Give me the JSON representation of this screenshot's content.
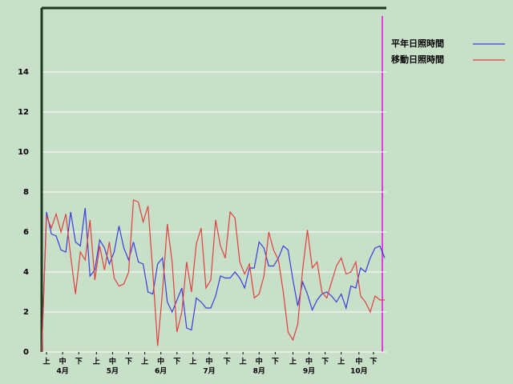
{
  "chart_data": {
    "type": "line",
    "x": [
      0,
      3,
      6,
      9,
      12,
      15,
      18,
      21,
      24,
      27,
      30,
      33,
      36,
      39,
      42,
      45,
      48,
      51,
      54,
      57,
      60,
      63,
      66,
      69,
      72,
      75,
      78,
      81,
      84,
      87,
      90,
      93,
      96,
      99,
      102,
      105,
      108,
      111,
      114,
      117,
      120,
      123,
      126,
      129,
      132,
      135,
      138,
      141,
      144,
      147,
      150,
      153,
      156,
      159,
      162,
      165,
      168,
      171,
      174,
      177,
      180,
      183,
      186,
      189,
      192,
      195,
      198,
      201,
      204,
      207,
      210,
      213
    ],
    "series": [
      {
        "name": "平年日照時間",
        "color": "#3c3cdc",
        "values": [
          0,
          7.0,
          5.9,
          5.8,
          5.1,
          5.0,
          7.0,
          5.5,
          5.3,
          7.2,
          3.8,
          4.1,
          5.6,
          5.2,
          4.4,
          5.0,
          6.3,
          5.2,
          4.6,
          5.5,
          4.5,
          4.4,
          3.0,
          2.9,
          4.4,
          4.7,
          2.5,
          2.0,
          2.6,
          3.2,
          1.2,
          1.1,
          2.7,
          2.5,
          2.2,
          2.2,
          2.8,
          3.8,
          3.7,
          3.7,
          4.0,
          3.7,
          3.2,
          4.2,
          4.2,
          5.5,
          5.2,
          4.3,
          4.3,
          4.7,
          5.3,
          5.1,
          3.6,
          2.3,
          3.5,
          2.9,
          2.1,
          2.6,
          2.9,
          3.0,
          2.8,
          2.5,
          2.9,
          2.2,
          3.3,
          3.2,
          4.2,
          4.0,
          4.7,
          5.2,
          5.3,
          4.7
        ]
      },
      {
        "name": "移動日照時間",
        "color": "#e04040",
        "values": [
          0,
          6.8,
          6.2,
          6.9,
          6.0,
          6.9,
          4.8,
          2.9,
          5.0,
          4.6,
          6.6,
          3.6,
          5.3,
          4.1,
          5.5,
          3.7,
          3.3,
          3.4,
          4.0,
          7.6,
          7.5,
          6.5,
          7.3,
          4.0,
          0.3,
          3.0,
          6.4,
          4.5,
          1.0,
          2.0,
          4.5,
          3.0,
          5.4,
          6.2,
          3.2,
          3.6,
          6.6,
          5.3,
          4.7,
          7.0,
          6.7,
          4.5,
          3.9,
          4.4,
          2.7,
          2.9,
          3.8,
          6.0,
          5.1,
          4.6,
          3.0,
          1.0,
          0.6,
          1.4,
          4.1,
          6.1,
          4.2,
          4.5,
          3.0,
          2.7,
          3.5,
          4.3,
          4.7,
          3.9,
          4.0,
          4.5,
          2.8,
          2.5,
          2.0,
          2.8,
          2.6,
          2.6
        ]
      }
    ],
    "xlim": [
      0,
      214
    ],
    "ylim": [
      0,
      17.2
    ],
    "yticks": [
      0,
      2,
      4,
      6,
      8,
      10,
      12,
      14
    ],
    "xticks": [
      {
        "value": 3,
        "label": "上"
      },
      {
        "value": 13,
        "label": "中"
      },
      {
        "value": 23,
        "label": "下"
      },
      {
        "value": 34,
        "label": "上"
      },
      {
        "value": 44,
        "label": "中"
      },
      {
        "value": 54,
        "label": "下"
      },
      {
        "value": 64,
        "label": "上"
      },
      {
        "value": 74,
        "label": "中"
      },
      {
        "value": 84,
        "label": "下"
      },
      {
        "value": 94,
        "label": "上"
      },
      {
        "value": 104,
        "label": "中"
      },
      {
        "value": 115,
        "label": "下"
      },
      {
        "value": 125,
        "label": "上"
      },
      {
        "value": 135,
        "label": "中"
      },
      {
        "value": 145,
        "label": "下"
      },
      {
        "value": 156,
        "label": "上"
      },
      {
        "value": 166,
        "label": "中"
      },
      {
        "value": 176,
        "label": "下"
      },
      {
        "value": 186,
        "label": "上"
      },
      {
        "value": 197,
        "label": "中"
      },
      {
        "value": 206,
        "label": "下"
      }
    ],
    "month_labels": [
      {
        "value": 13,
        "label": "4月"
      },
      {
        "value": 44,
        "label": "5月"
      },
      {
        "value": 74,
        "label": "6月"
      },
      {
        "value": 104,
        "label": "7月"
      },
      {
        "value": 135,
        "label": "8月"
      },
      {
        "value": 166,
        "label": "9月"
      },
      {
        "value": 197,
        "label": "10月"
      }
    ],
    "grid": true
  }
}
